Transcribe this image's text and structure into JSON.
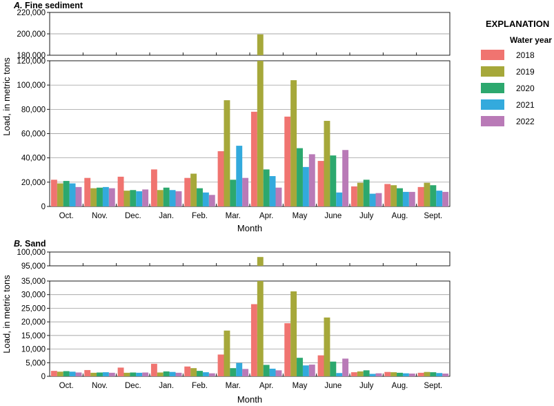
{
  "legend": {
    "heading": "EXPLANATION",
    "subheading": "Water year",
    "entries": [
      {
        "label": "2018",
        "color": "#f07470"
      },
      {
        "label": "2019",
        "color": "#a6a83a"
      },
      {
        "label": "2020",
        "color": "#2ca86e"
      },
      {
        "label": "2021",
        "color": "#33aadd"
      },
      {
        "label": "2022",
        "color": "#b97ab7"
      }
    ]
  },
  "chart_data": [
    {
      "type": "bar",
      "title": "A. Fine sediment",
      "title_letter": "A.",
      "title_text": "Fine sediment",
      "xlabel": "Month",
      "ylabel": "Load, in metric tons",
      "categories": [
        "Oct.",
        "Nov.",
        "Dec.",
        "Jan.",
        "Feb.",
        "Mar.",
        "Apr.",
        "May",
        "June",
        "July",
        "Aug.",
        "Sept."
      ],
      "series": [
        {
          "name": "2018",
          "values": [
            22000,
            23500,
            24500,
            30500,
            23500,
            45500,
            78000,
            74000,
            37500,
            16500,
            18500,
            16000
          ]
        },
        {
          "name": "2019",
          "values": [
            19000,
            15000,
            13000,
            13500,
            27000,
            87500,
            199500,
            104000,
            70500,
            19500,
            17500,
            19500
          ]
        },
        {
          "name": "2020",
          "values": [
            21000,
            15500,
            13500,
            15500,
            15000,
            22000,
            30500,
            48000,
            42000,
            22000,
            15000,
            17500
          ]
        },
        {
          "name": "2021",
          "values": [
            19000,
            16000,
            12500,
            13500,
            11500,
            50000,
            25000,
            32500,
            11500,
            10500,
            12000,
            13000
          ]
        },
        {
          "name": "2022",
          "values": [
            16000,
            15000,
            14000,
            12500,
            9500,
            23500,
            15500,
            43000,
            46500,
            11000,
            12000,
            12000
          ]
        }
      ],
      "axis_break": true,
      "ylim_lower": [
        0,
        120000
      ],
      "ylim_upper": [
        180000,
        220000
      ],
      "yticks_lower": [
        "0",
        "20,000",
        "40,000",
        "60,000",
        "80,000",
        "100,000",
        "120,000"
      ],
      "yticks_upper": [
        "180,000",
        "200,000",
        "220,000"
      ]
    },
    {
      "type": "bar",
      "title": "B. Sand",
      "title_letter": "B.",
      "title_text": "Sand",
      "xlabel": "Month",
      "ylabel": "Load, in metric tons",
      "categories": [
        "Oct.",
        "Nov.",
        "Dec.",
        "Jan.",
        "Feb.",
        "Mar.",
        "Apr.",
        "May",
        "June",
        "July",
        "Aug.",
        "Sept."
      ],
      "series": [
        {
          "name": "2018",
          "values": [
            2000,
            2300,
            3200,
            4600,
            3600,
            8000,
            26500,
            19500,
            7700,
            1500,
            1600,
            1300
          ]
        },
        {
          "name": "2019",
          "values": [
            1700,
            1300,
            1300,
            1400,
            3000,
            16800,
            98200,
            31200,
            21600,
            1800,
            1500,
            1600
          ]
        },
        {
          "name": "2020",
          "values": [
            1900,
            1400,
            1400,
            1800,
            2000,
            3000,
            4200,
            6800,
            5400,
            2200,
            1300,
            1500
          ]
        },
        {
          "name": "2021",
          "values": [
            1700,
            1500,
            1300,
            1600,
            1500,
            4900,
            2800,
            4000,
            1200,
            900,
            1100,
            1200
          ]
        },
        {
          "name": "2022",
          "values": [
            1400,
            1300,
            1400,
            1300,
            1100,
            2700,
            2200,
            4300,
            6500,
            1100,
            1000,
            1000
          ]
        }
      ],
      "axis_break": true,
      "ylim_lower": [
        0,
        35000
      ],
      "ylim_upper": [
        95000,
        100000
      ],
      "yticks_lower": [
        "0",
        "5,000",
        "10,000",
        "15,000",
        "20,000",
        "25,000",
        "30,000",
        "35,000"
      ],
      "yticks_upper": [
        "95,000",
        "100,000"
      ]
    }
  ]
}
